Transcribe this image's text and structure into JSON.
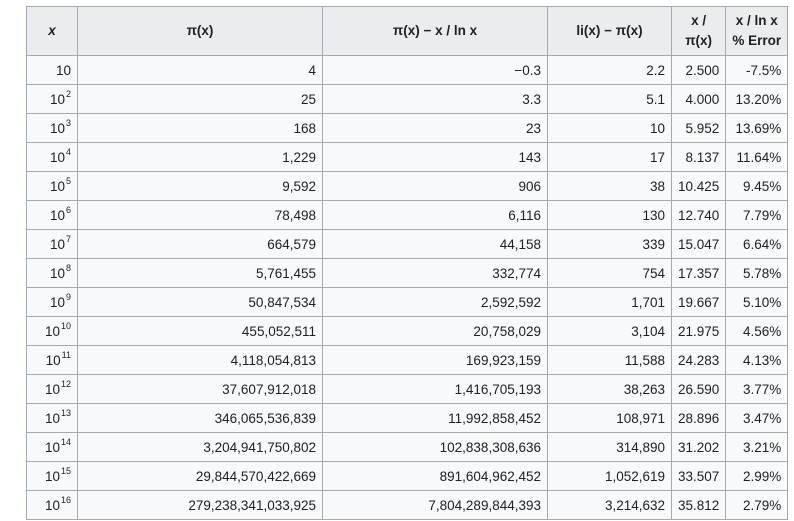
{
  "table": {
    "headers": {
      "x": "x",
      "pi_x": "π(x)",
      "pi_minus": "π(x) − x / ln x",
      "li_minus": "li(x) − π(x)",
      "x_over_pi_line1": "x /",
      "x_over_pi_line2": "π(x)",
      "err_line1": "x / ln x",
      "err_line2": "% Error"
    },
    "rows": [
      {
        "base": "10",
        "exp": "",
        "pi": "4",
        "diff1": "−0.3",
        "diff2": "2.2",
        "ratio": "2.500",
        "err": "-7.5%"
      },
      {
        "base": "10",
        "exp": "2",
        "pi": "25",
        "diff1": "3.3",
        "diff2": "5.1",
        "ratio": "4.000",
        "err": "13.20%"
      },
      {
        "base": "10",
        "exp": "3",
        "pi": "168",
        "diff1": "23",
        "diff2": "10",
        "ratio": "5.952",
        "err": "13.69%"
      },
      {
        "base": "10",
        "exp": "4",
        "pi": "1,229",
        "diff1": "143",
        "diff2": "17",
        "ratio": "8.137",
        "err": "11.64%"
      },
      {
        "base": "10",
        "exp": "5",
        "pi": "9,592",
        "diff1": "906",
        "diff2": "38",
        "ratio": "10.425",
        "err": "9.45%"
      },
      {
        "base": "10",
        "exp": "6",
        "pi": "78,498",
        "diff1": "6,116",
        "diff2": "130",
        "ratio": "12.740",
        "err": "7.79%"
      },
      {
        "base": "10",
        "exp": "7",
        "pi": "664,579",
        "diff1": "44,158",
        "diff2": "339",
        "ratio": "15.047",
        "err": "6.64%"
      },
      {
        "base": "10",
        "exp": "8",
        "pi": "5,761,455",
        "diff1": "332,774",
        "diff2": "754",
        "ratio": "17.357",
        "err": "5.78%"
      },
      {
        "base": "10",
        "exp": "9",
        "pi": "50,847,534",
        "diff1": "2,592,592",
        "diff2": "1,701",
        "ratio": "19.667",
        "err": "5.10%"
      },
      {
        "base": "10",
        "exp": "10",
        "pi": "455,052,511",
        "diff1": "20,758,029",
        "diff2": "3,104",
        "ratio": "21.975",
        "err": "4.56%"
      },
      {
        "base": "10",
        "exp": "11",
        "pi": "4,118,054,813",
        "diff1": "169,923,159",
        "diff2": "11,588",
        "ratio": "24.283",
        "err": "4.13%"
      },
      {
        "base": "10",
        "exp": "12",
        "pi": "37,607,912,018",
        "diff1": "1,416,705,193",
        "diff2": "38,263",
        "ratio": "26.590",
        "err": "3.77%"
      },
      {
        "base": "10",
        "exp": "13",
        "pi": "346,065,536,839",
        "diff1": "11,992,858,452",
        "diff2": "108,971",
        "ratio": "28.896",
        "err": "3.47%"
      },
      {
        "base": "10",
        "exp": "14",
        "pi": "3,204,941,750,802",
        "diff1": "102,838,308,636",
        "diff2": "314,890",
        "ratio": "31.202",
        "err": "3.21%"
      },
      {
        "base": "10",
        "exp": "15",
        "pi": "29,844,570,422,669",
        "diff1": "891,604,962,452",
        "diff2": "1,052,619",
        "ratio": "33.507",
        "err": "2.99%"
      },
      {
        "base": "10",
        "exp": "16",
        "pi": "279,238,341,033,925",
        "diff1": "7,804,289,844,393",
        "diff2": "3,214,632",
        "ratio": "35.812",
        "err": "2.79%"
      }
    ]
  }
}
